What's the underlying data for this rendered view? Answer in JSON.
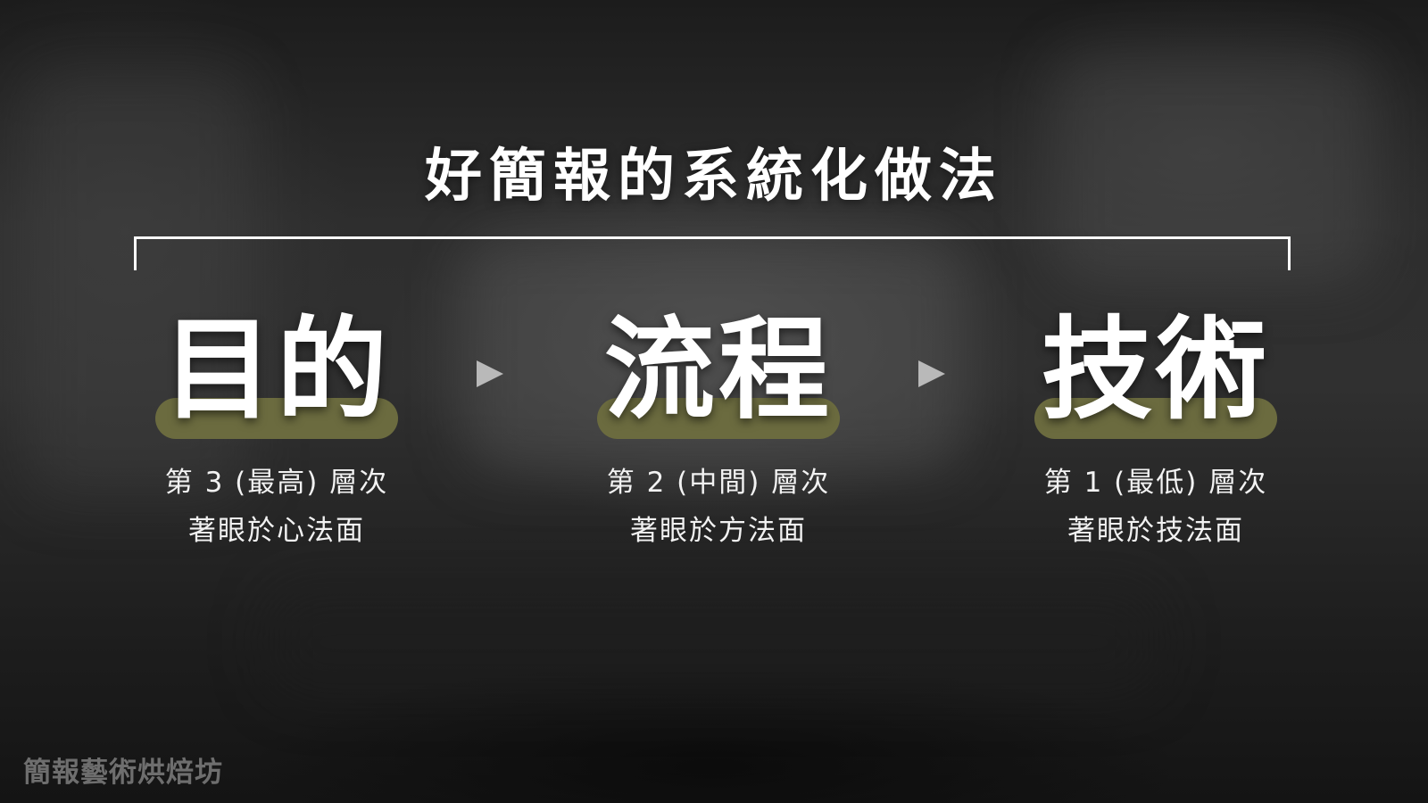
{
  "title": "好簡報的系統化做法",
  "colors": {
    "highlight": "#6b6b3f",
    "arrow": "#b9b9b9",
    "text": "#ffffff"
  },
  "steps": [
    {
      "label": "目的",
      "level": "第 3 (最高) 層次",
      "focus": "著眼於心法面"
    },
    {
      "label": "流程",
      "level": "第 2 (中間) 層次",
      "focus": "著眼於方法面"
    },
    {
      "label": "技術",
      "level": "第 1 (最低) 層次",
      "focus": "著眼於技法面"
    }
  ],
  "arrows": [
    "right-arrow-icon",
    "right-arrow-icon"
  ],
  "watermark": "簡報藝術烘焙坊"
}
